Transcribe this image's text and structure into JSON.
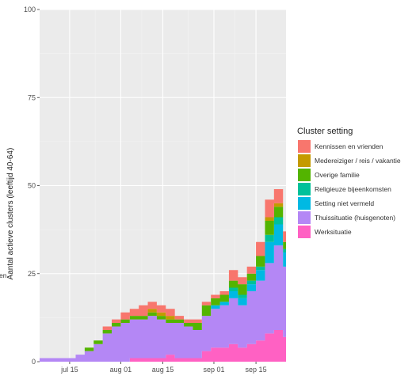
{
  "edge_text": "en",
  "colors": {
    "panel": "#ebebeb",
    "grid_major": "#ffffff",
    "grid_minor": "#f4f4f4"
  },
  "chart_data": {
    "type": "area",
    "stacked": true,
    "step": true,
    "title": "",
    "xlabel": "",
    "ylabel": "Aantal actieve clusters (leeftijd 40-64)",
    "ylim": [
      0,
      100
    ],
    "yticks": [
      0,
      25,
      50,
      75,
      100
    ],
    "xlim": [
      "2020-07-05",
      "2020-09-25"
    ],
    "xticks": [
      {
        "date": "2020-07-15",
        "label": "jul 15"
      },
      {
        "date": "2020-08-01",
        "label": "aug 01"
      },
      {
        "date": "2020-08-15",
        "label": "aug 15"
      },
      {
        "date": "2020-09-01",
        "label": "sep 01"
      },
      {
        "date": "2020-09-15",
        "label": "sep 15"
      }
    ],
    "grid": true,
    "legend": {
      "title": "Cluster setting",
      "position": "right"
    },
    "x": [
      "2020-07-05",
      "2020-07-08",
      "2020-07-11",
      "2020-07-14",
      "2020-07-17",
      "2020-07-20",
      "2020-07-23",
      "2020-07-26",
      "2020-07-29",
      "2020-08-01",
      "2020-08-04",
      "2020-08-07",
      "2020-08-10",
      "2020-08-13",
      "2020-08-16",
      "2020-08-19",
      "2020-08-22",
      "2020-08-25",
      "2020-08-28",
      "2020-08-31",
      "2020-09-03",
      "2020-09-06",
      "2020-09-09",
      "2020-09-12",
      "2020-09-15",
      "2020-09-18",
      "2020-09-21",
      "2020-09-24"
    ],
    "series": [
      {
        "name": "Werksituatie",
        "color": "#ff61c3",
        "values": [
          0,
          0,
          0,
          0,
          0,
          0,
          0,
          0,
          0,
          0,
          1,
          1,
          1,
          1,
          2,
          1,
          1,
          1,
          3,
          4,
          4,
          5,
          4,
          5,
          6,
          8,
          9,
          7
        ]
      },
      {
        "name": "Thuissituatie (huisgenoten)",
        "color": "#b487f5",
        "values": [
          1,
          1,
          1,
          1,
          2,
          3,
          5,
          8,
          10,
          11,
          11,
          11,
          12,
          11,
          9,
          10,
          9,
          8,
          10,
          11,
          12,
          13,
          12,
          15,
          17,
          20,
          24,
          20
        ]
      },
      {
        "name": "Setting niet vermeld",
        "color": "#00b9e3",
        "values": [
          0,
          0,
          0,
          0,
          0,
          0,
          0,
          0,
          0,
          0,
          0,
          0,
          0,
          0,
          0,
          0,
          0,
          0,
          0,
          1,
          1,
          2,
          2,
          2,
          3,
          6,
          6,
          4
        ]
      },
      {
        "name": "Religieuze bijeenkomsten",
        "color": "#00c19a",
        "values": [
          0,
          0,
          0,
          0,
          0,
          0,
          0,
          0,
          0,
          0,
          0,
          0,
          0,
          0,
          0,
          0,
          0,
          0,
          0,
          0,
          0,
          1,
          1,
          1,
          1,
          2,
          2,
          1
        ]
      },
      {
        "name": "Overige familie",
        "color": "#53b400",
        "values": [
          0,
          0,
          0,
          0,
          0,
          1,
          1,
          1,
          1,
          1,
          1,
          1,
          1,
          1,
          1,
          1,
          1,
          2,
          3,
          2,
          2,
          2,
          3,
          2,
          3,
          4,
          3,
          2
        ]
      },
      {
        "name": "Medereiziger / reis / vakantie",
        "color": "#c49a00",
        "values": [
          0,
          0,
          0,
          0,
          0,
          0,
          0,
          0,
          0,
          0,
          0,
          0,
          1,
          1,
          1,
          0,
          0,
          0,
          0,
          0,
          0,
          0,
          0,
          0,
          0,
          1,
          1,
          0
        ]
      },
      {
        "name": "Kennissen en vrienden",
        "color": "#f8766d",
        "values": [
          0,
          0,
          0,
          0,
          0,
          0,
          0,
          1,
          1,
          2,
          2,
          3,
          2,
          2,
          2,
          1,
          1,
          1,
          1,
          1,
          1,
          3,
          2,
          2,
          4,
          5,
          4,
          3
        ]
      }
    ]
  }
}
